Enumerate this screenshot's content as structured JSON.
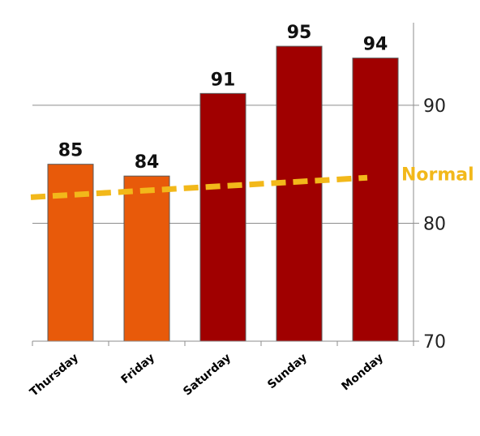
{
  "chart_data": {
    "type": "bar",
    "title": "",
    "xlabel": "",
    "ylabel": "",
    "categories": [
      "Thursday",
      "Friday",
      "Saturday",
      "Sunday",
      "Monday"
    ],
    "values": [
      85,
      84,
      91,
      95,
      94
    ],
    "bar_colors": [
      "#e85a0a",
      "#e85a0a",
      "#a00000",
      "#a00000",
      "#a00000"
    ],
    "ylim": [
      70,
      97
    ],
    "yticks": [
      70,
      80,
      90
    ],
    "ytick_labels": [
      "70",
      "80",
      "90"
    ],
    "y_axis_side": "right",
    "grid": true,
    "normal_line": {
      "label": "Normal",
      "color": "#f2b81a",
      "style": "dashed",
      "x": [
        "Thursday",
        "Monday"
      ],
      "y": [
        82.4,
        83.9
      ]
    }
  }
}
